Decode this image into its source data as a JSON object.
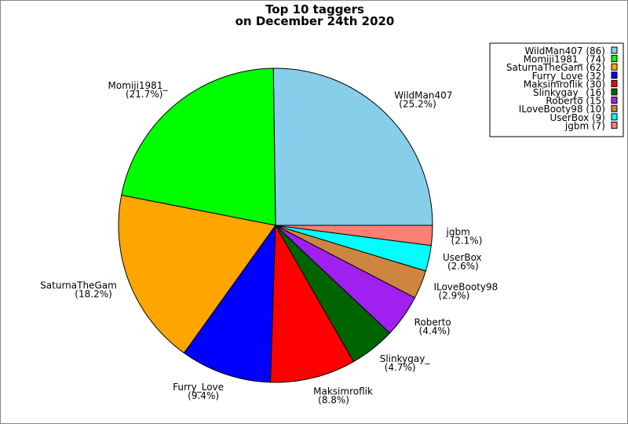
{
  "chart_data": {
    "type": "pie",
    "title": "Top 10 taggers",
    "subtitle": "on December 24th 2020",
    "legend_position": "top-right",
    "categories": [
      "WildMan407",
      "Momiji1981_",
      "SaturnaTheGam",
      "Furry_Love",
      "Maksimroflik",
      "Slinkygay_",
      "Roberto",
      "ILoveBooty98",
      "UserBox",
      "jgbm"
    ],
    "values": [
      86,
      74,
      62,
      32,
      30,
      16,
      15,
      10,
      9,
      7
    ],
    "percent_labels": [
      "25.2%",
      "21.7%",
      "18.2%",
      "9.4%",
      "8.8%",
      "4.7%",
      "4.4%",
      "2.9%",
      "2.6%",
      "2.1%"
    ],
    "colors": [
      "#87ceeb",
      "#00ff00",
      "#ffa500",
      "#0000ff",
      "#ff0000",
      "#006400",
      "#a020f0",
      "#cd853f",
      "#00ffff",
      "#fa8072"
    ]
  }
}
